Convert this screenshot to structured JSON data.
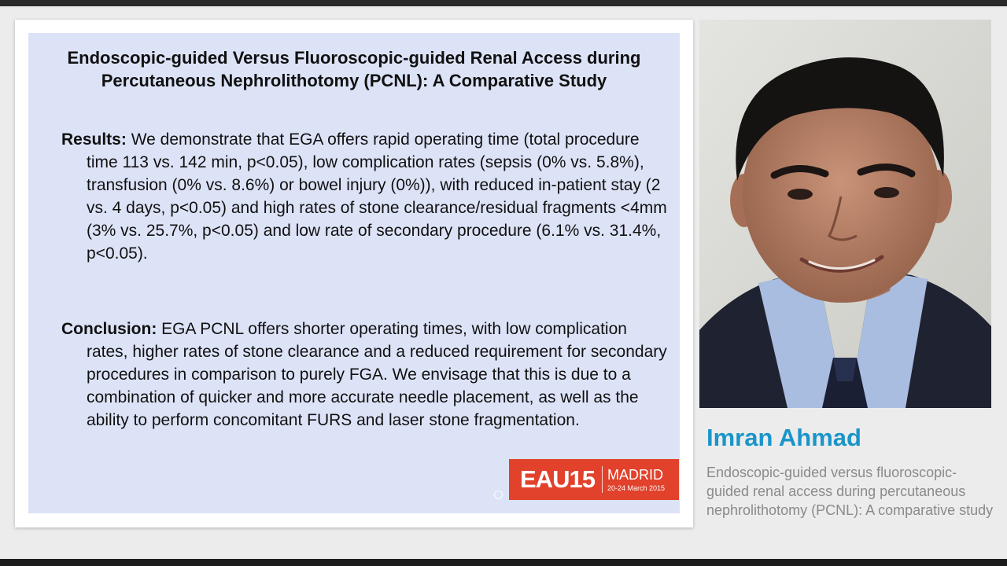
{
  "slide": {
    "title": "Endoscopic-guided Versus Fluoroscopic-guided Renal Access during Percutaneous Nephrolithotomy (PCNL): A Comparative Study",
    "results_label": "Results:",
    "results_text": "We demonstrate that EGA offers rapid operating time (total procedure time 113 vs. 142 min, p<0.05), low complication rates (sepsis (0% vs. 5.8%), transfusion (0% vs. 8.6%) or bowel injury (0%)), with reduced in-patient stay (2 vs. 4 days, p<0.05) and high rates of stone clearance/residual fragments <4mm (3% vs. 25.7%, p<0.05) and low rate of secondary procedure (6.1% vs. 31.4%, p<0.05).",
    "conclusion_label": "Conclusion:",
    "conclusion_text": "EGA PCNL offers shorter operating times, with low complication rates, higher rates of stone clearance and a reduced requirement for secondary procedures in comparison to purely FGA.  We envisage that this is due to a combination of quicker and more accurate needle placement, as well as the ability to perform concomitant FURS and laser stone fragmentation.",
    "logo": {
      "main": "EAU15",
      "city": "MADRID",
      "dates": "20-24 March 2015",
      "color": "#e2412b"
    },
    "background_color": "#dde3f7"
  },
  "speaker": {
    "name": "Imran Ahmad",
    "talk_title": "Endoscopic-guided versus fluoroscopic-guided renal access during percutaneous nephrolithotomy (PCNL): A comparative study",
    "name_color": "#1a95c9"
  }
}
